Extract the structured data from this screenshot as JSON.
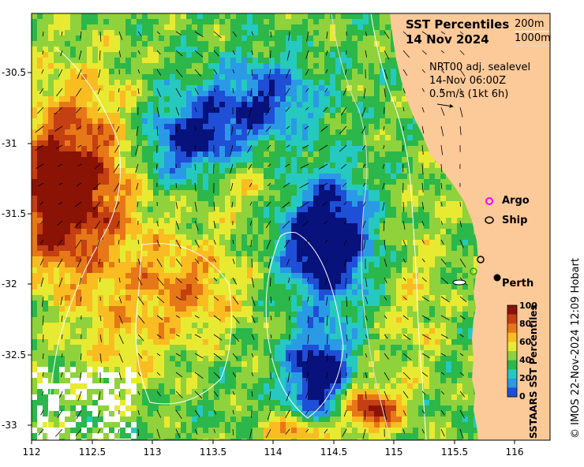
{
  "title": {
    "line1": "SST Percentiles",
    "line2": "14 Nov 2024"
  },
  "contour_key": {
    "label1": "200m",
    "label2": "1000m"
  },
  "current_info": {
    "line1": "NRT00 adj. sealevel",
    "line2": "14-Nov 06:00Z",
    "line3": "0.5m/s (1kt 6h)"
  },
  "legend": {
    "argo_label": "Argo",
    "ship_label": "Ship"
  },
  "city": {
    "name": "Perth"
  },
  "colorbar": {
    "label": "SSTAARS SST Percentiles",
    "ticks": [
      "100",
      "80",
      "60",
      "40",
      "20",
      "0"
    ]
  },
  "credit": "© IMOS 22-Nov-2024 12:09 Hobart",
  "axes": {
    "y_ticks": [
      "-30.5",
      "-31",
      "-31.5",
      "-32",
      "-32.5",
      "-33"
    ],
    "x_ticks": [
      "112",
      "112.5",
      "113",
      "113.5",
      "114",
      "114.5",
      "115",
      "115.5",
      "116"
    ]
  },
  "colors": {
    "land": "#fcc998",
    "p0": "#08127c",
    "p10": "#1f4fd6",
    "p20": "#2a9ae6",
    "p30": "#25c9c0",
    "p40": "#2cb74b",
    "p50": "#8fd23c",
    "p60": "#e8ea32",
    "p70": "#fabd21",
    "p80": "#e67817",
    "p90": "#c43f11",
    "p100": "#8a1306"
  }
}
